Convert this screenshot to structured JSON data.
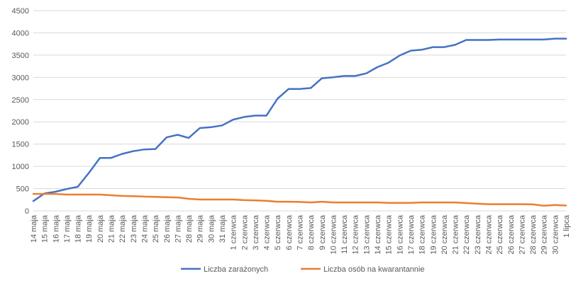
{
  "chart_data": {
    "type": "line",
    "title": "",
    "xlabel": "",
    "ylabel": "",
    "ylim": [
      0,
      4500
    ],
    "yticks": [
      0,
      500,
      1000,
      1500,
      2000,
      2500,
      3000,
      3500,
      4000,
      4500
    ],
    "grid": true,
    "legend_position": "bottom",
    "categories": [
      "14 maja",
      "15 maja",
      "16 maja",
      "17 maja",
      "18 maja",
      "19 maja",
      "20 maja",
      "21 maja",
      "22 maja",
      "23 maja",
      "24 maja",
      "25 maja",
      "26 maja",
      "27 maja",
      "28 maja",
      "29 maja",
      "30 maja",
      "31 maja",
      "1 czerwca",
      "2 czerwca",
      "3 czerwca",
      "4 czerwca",
      "5 czerwca",
      "6 czerwca",
      "7 czerwca",
      "8 czerwca",
      "9 czerwca",
      "10 czerwca",
      "11 czerwca",
      "12 czerwca",
      "13 czerwca",
      "14 czerwca",
      "15 czerwca",
      "16 czerwca",
      "17 czerwca",
      "18 czerwca",
      "19 czerwca",
      "20 czerwca",
      "21 czerwca",
      "22 czerwca",
      "23 czerwca",
      "24 czerwca",
      "25 czerwca",
      "26 czerwca",
      "27 czerwca",
      "28 czerwca",
      "29 czerwca",
      "30 czerwca",
      "1 lipca"
    ],
    "series": [
      {
        "name": "Liczba zarażonych",
        "color": "#4472C4",
        "values": [
          220,
          390,
          430,
          490,
          540,
          850,
          1190,
          1190,
          1280,
          1340,
          1380,
          1390,
          1650,
          1710,
          1640,
          1860,
          1880,
          1920,
          2050,
          2110,
          2140,
          2140,
          2520,
          2740,
          2740,
          2760,
          2980,
          3000,
          3030,
          3030,
          3090,
          3230,
          3330,
          3490,
          3600,
          3620,
          3680,
          3680,
          3730,
          3840,
          3840,
          3840,
          3850,
          3850,
          3850,
          3850,
          3850,
          3870,
          3870
        ]
      },
      {
        "name": "Liczba osób na kwarantannie",
        "color": "#ED7D31",
        "values": [
          380,
          380,
          380,
          365,
          365,
          365,
          365,
          350,
          335,
          330,
          320,
          315,
          305,
          300,
          270,
          255,
          255,
          255,
          255,
          240,
          235,
          225,
          205,
          205,
          200,
          190,
          205,
          190,
          190,
          190,
          190,
          190,
          180,
          180,
          180,
          190,
          190,
          190,
          190,
          175,
          160,
          150,
          150,
          150,
          150,
          145,
          115,
          130,
          120
        ]
      }
    ]
  }
}
